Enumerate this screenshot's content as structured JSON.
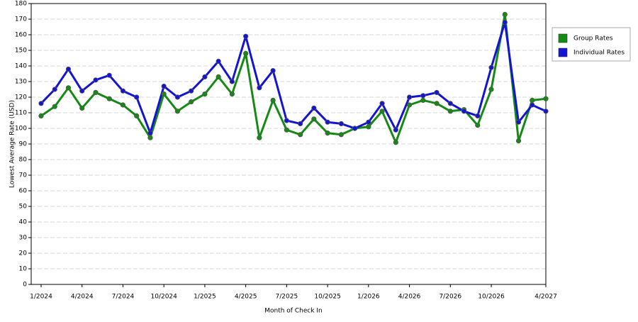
{
  "chart_data": {
    "type": "line",
    "x_label": "Month of Check In",
    "y_label": "Lowest Average Rate (USD)",
    "categories": [
      "1/2024",
      null,
      null,
      "4/2024",
      null,
      null,
      "7/2024",
      null,
      null,
      "10/2024",
      null,
      null,
      "1/2025",
      null,
      null,
      "4/2025",
      null,
      null,
      "7/2025",
      null,
      null,
      "10/2025",
      null,
      null,
      "1/2026",
      null,
      null,
      "4/2026",
      null,
      null,
      "7/2026",
      null,
      null,
      "10/2026",
      null,
      null,
      null,
      "4/2027"
    ],
    "series": [
      {
        "name": "Group Rates",
        "color": "#158a15",
        "values": [
          108,
          114,
          126,
          113,
          123,
          119,
          115,
          108,
          94,
          122,
          111,
          117,
          122,
          133,
          122,
          148,
          94,
          118,
          99,
          96,
          106,
          97,
          96,
          100,
          101,
          111,
          91,
          115,
          118,
          116,
          111,
          112,
          102,
          125,
          173,
          92,
          118,
          119
        ]
      },
      {
        "name": "Individual Rates",
        "color": "#1414d2",
        "values": [
          116,
          125,
          138,
          124,
          131,
          134,
          124,
          120,
          97,
          127,
          120,
          124,
          133,
          143,
          130,
          159,
          126,
          137,
          105,
          103,
          113,
          104,
          103,
          100,
          104,
          116,
          99,
          120,
          121,
          123,
          116,
          111,
          108,
          139,
          168,
          104,
          115,
          111
        ]
      }
    ],
    "ylim": [
      0,
      180
    ],
    "yticks": [
      0,
      10,
      20,
      30,
      40,
      50,
      60,
      70,
      80,
      90,
      100,
      110,
      120,
      130,
      140,
      150,
      160,
      170,
      180
    ],
    "grid": true,
    "legend": "right"
  }
}
